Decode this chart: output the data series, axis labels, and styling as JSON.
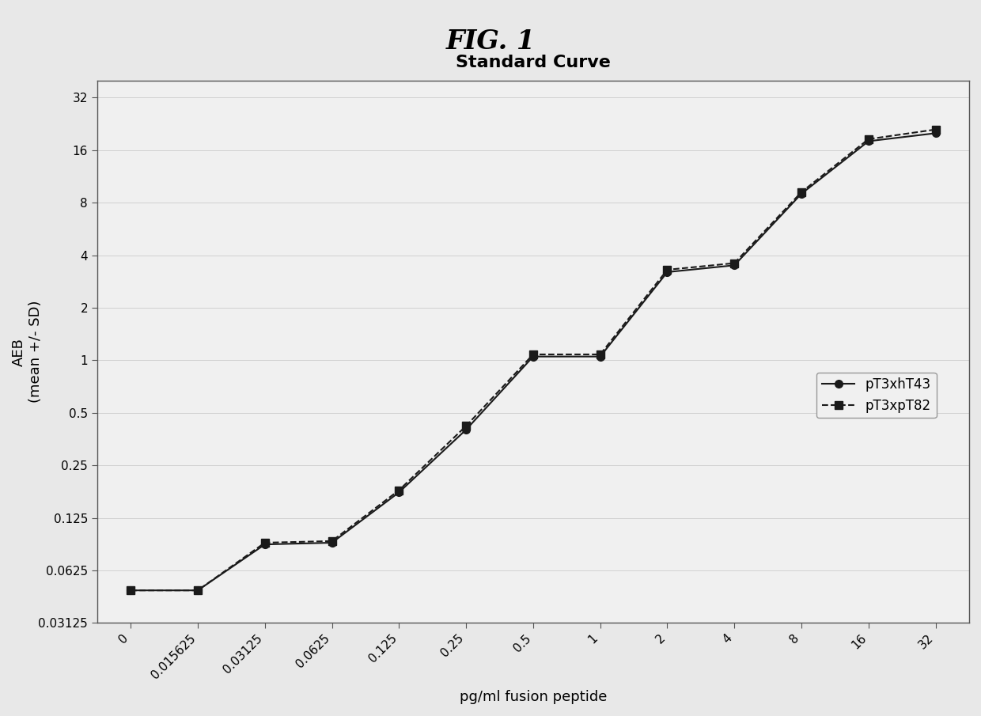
{
  "title": "FIG. 1",
  "subtitle": "Standard Curve",
  "xlabel": "pg/ml fusion peptide",
  "ylabel": "AEB\n(mean +/- SD)",
  "x_tick_labels": [
    "0",
    "0.015625",
    "0.03125",
    "0.0625",
    "0.125",
    "0.25",
    "0.5",
    "1",
    "2",
    "4",
    "8",
    "16",
    "32"
  ],
  "y_ticks": [
    0.03125,
    0.0625,
    0.125,
    0.25,
    0.5,
    1,
    2,
    4,
    8,
    16,
    32
  ],
  "y_tick_labels": [
    "0.03125",
    "0.0625",
    "0.125",
    "0.25",
    "0.5",
    "1",
    "2",
    "4",
    "8",
    "16",
    "32"
  ],
  "series1_label": "pT3xhT43",
  "series2_label": "pT3xpT82",
  "series1_y": [
    0.048,
    0.048,
    0.088,
    0.09,
    0.175,
    0.4,
    1.05,
    1.05,
    3.2,
    3.5,
    9.0,
    18.0,
    20.0
  ],
  "series2_y": [
    0.048,
    0.048,
    0.09,
    0.092,
    0.18,
    0.42,
    1.08,
    1.08,
    3.3,
    3.6,
    9.2,
    18.5,
    21.0
  ],
  "line1_style": "-",
  "line2_style": "--",
  "marker1": "o",
  "marker2": "s",
  "color1": "#1a1a1a",
  "color2": "#1a1a1a",
  "linewidth": 1.5,
  "markersize": 7,
  "background_color": "#e8e8e8",
  "plot_bg_color": "#f0f0f0",
  "ylim_min": 0.03125,
  "ylim_max": 40.0,
  "title_fontsize": 24,
  "subtitle_fontsize": 16,
  "tick_fontsize": 11,
  "label_fontsize": 13,
  "legend_fontsize": 12
}
